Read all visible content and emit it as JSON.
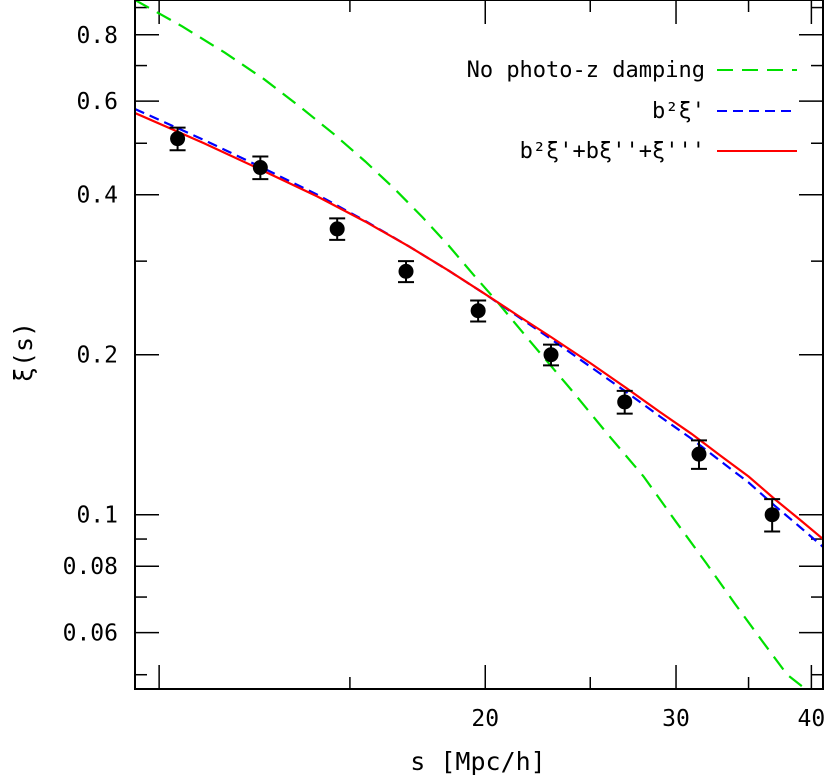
{
  "colors": {
    "no_damping": "#00e000",
    "b2xi": "#0000ff",
    "full": "#ff0000",
    "data": "#000000"
  },
  "chart_data": {
    "type": "line",
    "xscale": "log",
    "yscale": "log",
    "xlim": [
      9.5,
      41
    ],
    "ylim": [
      0.047,
      0.93
    ],
    "xlabel": "s [Mpc/h]",
    "ylabel": "ξ(s)",
    "xticks_major": [
      10,
      20,
      30,
      40
    ],
    "xticks_minor": [
      15,
      25,
      35
    ],
    "xtick_labels": [
      {
        "value": 20,
        "label": "20"
      },
      {
        "value": 30,
        "label": "30"
      },
      {
        "value": 40,
        "label": "40"
      }
    ],
    "yticks_major": [
      0.06,
      0.08,
      0.1,
      0.2,
      0.4,
      0.6,
      0.8
    ],
    "yticks_minor": [
      0.05,
      0.07,
      0.09,
      0.3,
      0.5,
      0.7,
      0.9
    ],
    "ytick_labels": [
      {
        "value": 0.06,
        "label": "0.06"
      },
      {
        "value": 0.08,
        "label": "0.08"
      },
      {
        "value": 0.1,
        "label": "0.1"
      },
      {
        "value": 0.2,
        "label": "0.2"
      },
      {
        "value": 0.4,
        "label": "0.4"
      },
      {
        "value": 0.6,
        "label": "0.6"
      },
      {
        "value": 0.8,
        "label": "0.8"
      }
    ],
    "legend_position": "top-right",
    "series": [
      {
        "name": "No photo-z damping",
        "style": "long-dash",
        "color_key": "no_damping",
        "x": [
          9.5,
          10.5,
          11.5,
          12.5,
          13.5,
          14.5,
          15.5,
          16.5,
          17.5,
          18.5,
          19.5,
          20.5,
          22,
          24,
          26,
          28,
          30,
          32,
          34,
          36,
          38,
          39.5
        ],
        "y": [
          0.93,
          0.83,
          0.74,
          0.66,
          0.585,
          0.52,
          0.462,
          0.41,
          0.363,
          0.321,
          0.283,
          0.252,
          0.212,
          0.172,
          0.141,
          0.118,
          0.097,
          0.081,
          0.068,
          0.058,
          0.05,
          0.047
        ]
      },
      {
        "name": "b²ξ'",
        "style": "dash-dot",
        "color_key": "b2xi",
        "x": [
          9.5,
          11,
          12.5,
          14,
          15.5,
          17,
          18.5,
          20,
          21.5,
          23,
          25,
          27,
          29,
          31,
          33,
          35,
          37,
          39,
          41
        ],
        "y": [
          0.58,
          0.507,
          0.448,
          0.4,
          0.357,
          0.32,
          0.288,
          0.26,
          0.235,
          0.214,
          0.19,
          0.17,
          0.153,
          0.139,
          0.126,
          0.115,
          0.104,
          0.095,
          0.087
        ]
      },
      {
        "name": "b²ξ'+bξ''+ξ'''",
        "style": "solid",
        "color_key": "full",
        "x": [
          9.5,
          11,
          12.5,
          14,
          15.5,
          17,
          18.5,
          20,
          21.5,
          23,
          25,
          27,
          29,
          31,
          33,
          35,
          37,
          39,
          41
        ],
        "y": [
          0.57,
          0.5,
          0.443,
          0.397,
          0.356,
          0.32,
          0.288,
          0.26,
          0.236,
          0.216,
          0.193,
          0.173,
          0.156,
          0.142,
          0.129,
          0.118,
          0.107,
          0.098,
          0.09
        ]
      }
    ],
    "points": {
      "name": "data",
      "x": [
        10.4,
        12.4,
        14.6,
        16.9,
        19.7,
        23.0,
        26.9,
        31.5,
        36.8
      ],
      "y": [
        0.51,
        0.45,
        0.345,
        0.287,
        0.242,
        0.2,
        0.163,
        0.13,
        0.1
      ],
      "yerr": [
        0.025,
        0.022,
        0.016,
        0.013,
        0.011,
        0.009,
        0.008,
        0.008,
        0.007
      ]
    }
  }
}
